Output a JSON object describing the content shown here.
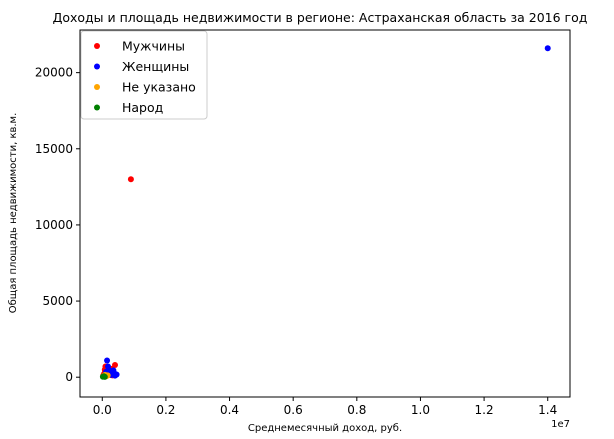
{
  "chart_data": {
    "type": "scatter",
    "title": "Доходы и площадь недвижимости в регионе: Астраханская область за 2016 год",
    "xlabel": "Среднемесячный доход, руб.",
    "ylabel": "Общая площадь недвижимости, кв.м.",
    "x_offset_label": "1e7",
    "xlim": [
      -700000,
      14700000
    ],
    "ylim": [
      -1300,
      22800
    ],
    "x_ticks": [
      0,
      2000000,
      4000000,
      6000000,
      8000000,
      10000000,
      12000000,
      14000000
    ],
    "x_tick_labels": [
      "0.0",
      "0.2",
      "0.4",
      "0.6",
      "0.8",
      "1.0",
      "1.2",
      "1.4"
    ],
    "y_ticks": [
      0,
      5000,
      10000,
      15000,
      20000
    ],
    "y_tick_labels": [
      "0",
      "5000",
      "10000",
      "15000",
      "20000"
    ],
    "grid": false,
    "legend_position": "top-left",
    "series": [
      {
        "name": "Мужчины",
        "color": "#ff0000",
        "points": [
          [
            900000,
            13000
          ],
          [
            50000,
            200
          ],
          [
            80000,
            500
          ],
          [
            120000,
            300
          ],
          [
            150000,
            650
          ],
          [
            200000,
            400
          ],
          [
            250000,
            150
          ],
          [
            300000,
            550
          ],
          [
            350000,
            250
          ],
          [
            400000,
            800
          ],
          [
            30000,
            100
          ],
          [
            60000,
            50
          ],
          [
            100000,
            700
          ],
          [
            180000,
            250
          ],
          [
            220000,
            180
          ],
          [
            270000,
            350
          ],
          [
            320000,
            120
          ],
          [
            420000,
            150
          ],
          [
            90000,
            400
          ],
          [
            140000,
            100
          ]
        ]
      },
      {
        "name": "Женщины",
        "color": "#0000ff",
        "points": [
          [
            14000000,
            21600
          ],
          [
            150000,
            1100
          ],
          [
            200000,
            500
          ],
          [
            250000,
            300
          ],
          [
            300000,
            200
          ],
          [
            350000,
            450
          ],
          [
            400000,
            100
          ],
          [
            180000,
            700
          ],
          [
            120000,
            350
          ],
          [
            280000,
            150
          ],
          [
            380000,
            250
          ],
          [
            450000,
            180
          ]
        ]
      },
      {
        "name": "Не указано",
        "color": "#ffa500",
        "points": [
          [
            40000,
            80
          ],
          [
            90000,
            150
          ],
          [
            130000,
            60
          ],
          [
            170000,
            120
          ]
        ]
      },
      {
        "name": "Народ",
        "color": "#008000",
        "points": [
          [
            20000,
            30
          ],
          [
            50000,
            60
          ],
          [
            80000,
            20
          ]
        ]
      }
    ]
  }
}
